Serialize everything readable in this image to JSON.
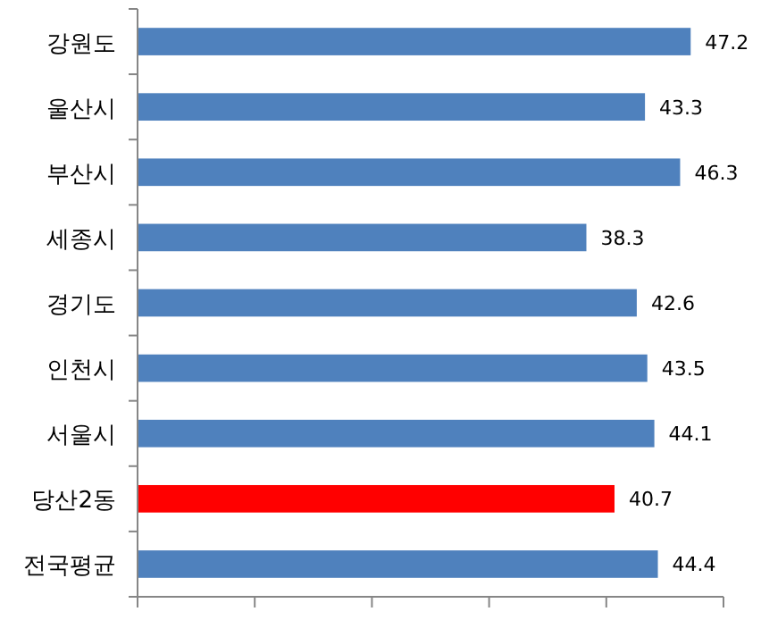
{
  "chart_data": {
    "type": "bar",
    "orientation": "horizontal",
    "categories": [
      "강원도",
      "울산시",
      "부산시",
      "세종시",
      "경기도",
      "인천시",
      "서울시",
      "당산2동",
      "전국평균"
    ],
    "values": [
      47.2,
      43.3,
      46.3,
      38.3,
      42.6,
      43.5,
      44.1,
      40.7,
      44.4
    ],
    "colors": [
      "#4f81bd",
      "#4f81bd",
      "#4f81bd",
      "#4f81bd",
      "#4f81bd",
      "#4f81bd",
      "#4f81bd",
      "#ff0000",
      "#4f81bd"
    ],
    "xlim": [
      0,
      50
    ],
    "xticks": [
      {
        "value": 0,
        "label": null
      },
      {
        "value": 10,
        "label": null
      },
      {
        "value": 20,
        "label": null
      },
      {
        "value": 30,
        "label": null
      },
      {
        "value": 40,
        "label": null
      },
      {
        "value": 50,
        "label": null
      }
    ],
    "data_labels": true,
    "tick_labels": "y"
  }
}
